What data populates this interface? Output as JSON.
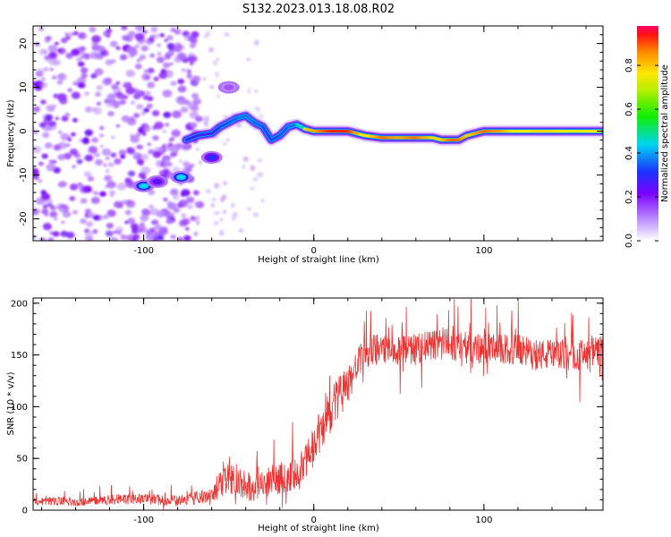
{
  "title": "S132.2023.013.18.08.R02",
  "chart_data": [
    {
      "type": "heatmap",
      "xlabel": "Height of straight line (km)",
      "ylabel": "Frequency (Hz)",
      "xlim": [
        -165,
        170
      ],
      "ylim": [
        -25,
        24
      ],
      "xticks": [
        -100,
        0,
        100
      ],
      "xtick_labels": [
        "-100",
        "0",
        "100"
      ],
      "yticks": [
        -20,
        -10,
        0,
        10,
        20
      ],
      "ytick_labels": [
        "-20",
        "-10",
        "0",
        "10",
        "20"
      ],
      "colorbar": {
        "label": "Normalized spectral amplitude",
        "range": [
          0,
          0.98
        ],
        "ticks": [
          0.0,
          0.2,
          0.4,
          0.6,
          0.8
        ],
        "tick_labels": [
          "0.0",
          "0.2",
          "0.4",
          "0.6",
          "0.8"
        ]
      },
      "ridge": {
        "x": [
          -75,
          -68,
          -60,
          -55,
          -50,
          -45,
          -40,
          -35,
          -30,
          -25,
          -20,
          -15,
          -10,
          -5,
          0,
          10,
          20,
          30,
          40,
          50,
          60,
          70,
          75,
          80,
          85,
          90,
          100,
          110,
          120,
          130,
          140,
          150,
          160,
          170
        ],
        "y": [
          -2,
          -1,
          -0.5,
          1,
          2,
          3,
          3.5,
          2,
          1,
          -2,
          -1,
          1,
          1.5,
          0.5,
          0,
          0,
          0,
          -1,
          -1.5,
          -1.5,
          -1.5,
          -1.5,
          -2,
          -2,
          -2,
          -1,
          0,
          0,
          0,
          0,
          0,
          0,
          0,
          0
        ],
        "amplitude": [
          0.4,
          0.4,
          0.4,
          0.45,
          0.5,
          0.5,
          0.55,
          0.5,
          0.5,
          0.45,
          0.5,
          0.5,
          0.55,
          0.8,
          0.85,
          0.95,
          0.95,
          0.75,
          0.9,
          0.85,
          0.9,
          0.8,
          0.8,
          0.9,
          0.9,
          0.8,
          0.9,
          0.85,
          0.75,
          0.8,
          0.8,
          0.75,
          0.75,
          0.8
        ]
      },
      "blobs": [
        {
          "x": -100,
          "y": -12.5,
          "amplitude": 0.45
        },
        {
          "x": -92,
          "y": -11.5,
          "amplitude": 0.25
        },
        {
          "x": -78,
          "y": -10.5,
          "amplitude": 0.45
        },
        {
          "x": -60,
          "y": -6,
          "amplitude": 0.3
        },
        {
          "x": -50,
          "y": 10,
          "amplitude": 0.15
        }
      ],
      "noise_region": {
        "x": [
          -165,
          -75
        ],
        "y": [
          -25,
          24
        ],
        "amplitude": 0.1
      }
    },
    {
      "type": "line",
      "xlabel": "Height of straight line (km)",
      "ylabel": "SNR (10 * v/v)",
      "xlim": [
        -165,
        170
      ],
      "ylim": [
        0,
        205
      ],
      "xticks": [
        -100,
        0,
        100
      ],
      "xtick_labels": [
        "-100",
        "0",
        "100"
      ],
      "yticks": [
        0,
        50,
        100,
        150,
        200
      ],
      "ytick_labels": [
        "0",
        "50",
        "100",
        "150",
        "200"
      ],
      "series": [
        {
          "color": "#ee3333",
          "x": [
            -165,
            -150,
            -140,
            -130,
            -120,
            -110,
            -100,
            -90,
            -80,
            -70,
            -60,
            -55,
            -50,
            -45,
            -40,
            -35,
            -30,
            -25,
            -20,
            -15,
            -10,
            -5,
            0,
            5,
            10,
            15,
            20,
            25,
            30,
            35,
            40,
            50,
            60,
            70,
            80,
            90,
            100,
            110,
            120,
            130,
            140,
            150,
            160,
            170
          ],
          "y": [
            8,
            9,
            8,
            9,
            10,
            10,
            11,
            10,
            9,
            12,
            15,
            25,
            30,
            30,
            25,
            20,
            25,
            30,
            30,
            30,
            35,
            45,
            60,
            80,
            95,
            110,
            120,
            140,
            150,
            155,
            155,
            155,
            155,
            160,
            160,
            158,
            155,
            155,
            155,
            150,
            150,
            150,
            150,
            155
          ],
          "spread": [
            4,
            4,
            4,
            4,
            5,
            5,
            5,
            5,
            5,
            6,
            8,
            12,
            15,
            15,
            15,
            12,
            15,
            15,
            15,
            15,
            18,
            20,
            22,
            22,
            22,
            20,
            18,
            15,
            15,
            15,
            15,
            15,
            15,
            15,
            15,
            15,
            15,
            15,
            15,
            15,
            15,
            15,
            15,
            15
          ]
        }
      ]
    }
  ]
}
